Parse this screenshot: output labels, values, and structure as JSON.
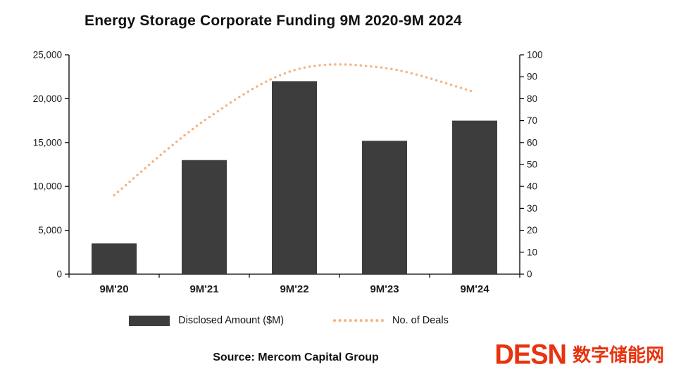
{
  "title": "Energy Storage Corporate Funding 9M 2020-9M 2024",
  "source": "Source: Mercom Capital Group",
  "logo": {
    "latin": "DESN",
    "cjk": "数字储能网",
    "color": "#e8330f"
  },
  "colors": {
    "bar": "#3d3d3d",
    "line": "#f5b27f",
    "axis": "#000000",
    "tick_text": "#1a1a1a"
  },
  "chart_data": {
    "type": "bar",
    "title": "Energy Storage Corporate Funding 9M 2020-9M 2024",
    "categories": [
      "9M'20",
      "9M'21",
      "9M'22",
      "9M'23",
      "9M'24"
    ],
    "series": [
      {
        "name": "Disclosed Amount ($M)",
        "type": "bar",
        "axis": "left",
        "values": [
          3500,
          13000,
          22000,
          15200,
          17500
        ]
      },
      {
        "name": "No. of Deals",
        "type": "line",
        "style": "dotted",
        "axis": "right",
        "values": [
          36,
          70,
          93,
          94,
          83
        ]
      }
    ],
    "xlabel": "",
    "ylabel_left": "",
    "ylabel_right": "",
    "left_axis": {
      "min": 0,
      "max": 25000,
      "step": 5000,
      "tick_labels": [
        "0",
        "5,000",
        "10,000",
        "15,000",
        "20,000",
        "25,000"
      ]
    },
    "right_axis": {
      "min": 0,
      "max": 100,
      "step": 10,
      "tick_labels": [
        "0",
        "10",
        "20",
        "30",
        "40",
        "50",
        "60",
        "70",
        "80",
        "90",
        "100"
      ]
    },
    "grid": false,
    "legend_position": "bottom"
  }
}
